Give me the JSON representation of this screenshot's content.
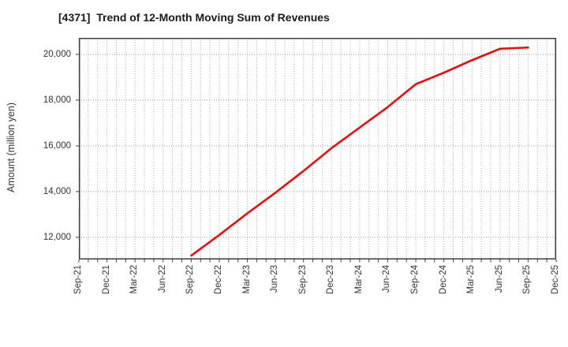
{
  "chart_data": {
    "type": "line",
    "title": "[4371]  Trend of 12-Month Moving Sum of Revenues",
    "ylabel": "Amount (million yen)",
    "xlabel": "",
    "categories": [
      "Sep-21",
      "Dec-21",
      "Mar-22",
      "Jun-22",
      "Sep-22",
      "Dec-22",
      "Mar-23",
      "Jun-23",
      "Sep-23",
      "Dec-23",
      "Mar-24",
      "Jun-24",
      "Sep-24",
      "Dec-24",
      "Mar-25",
      "Jun-25",
      "Sep-25",
      "Dec-25"
    ],
    "months_per_category": 3,
    "ylim": [
      11030,
      20725
    ],
    "yticks": [
      {
        "value": 12000,
        "label": "12,000"
      },
      {
        "value": 14000,
        "label": "14,000"
      },
      {
        "value": 16000,
        "label": "16,000"
      },
      {
        "value": 18000,
        "label": "18,000"
      },
      {
        "value": 20000,
        "label": "20,000"
      }
    ],
    "grid": true,
    "legend": "none",
    "series": [
      {
        "name": "12-Month Moving Sum of Revenues",
        "color": "#ff0000",
        "points": [
          {
            "x": "Sep-22",
            "y": 11200
          },
          {
            "x": "Dec-22",
            "y": 12100
          },
          {
            "x": "Mar-23",
            "y": 13050
          },
          {
            "x": "Jun-23",
            "y": 13950
          },
          {
            "x": "Sep-23",
            "y": 14900
          },
          {
            "x": "Dec-23",
            "y": 15900
          },
          {
            "x": "Mar-24",
            "y": 16800
          },
          {
            "x": "Jun-24",
            "y": 17700
          },
          {
            "x": "Sep-24",
            "y": 18700
          },
          {
            "x": "Dec-24",
            "y": 19200
          },
          {
            "x": "Mar-25",
            "y": 19750
          },
          {
            "x": "Jun-25",
            "y": 20250
          },
          {
            "x": "Sep-25",
            "y": 20300
          }
        ]
      }
    ],
    "colors": {
      "line": "#ff0000",
      "grid_minor": "#b0b0b0",
      "grid_major": "#999999",
      "axis_border": "#3c3c3c",
      "tick_text": "#333333",
      "title_text": "#1a1a1a",
      "background": "#ffffff"
    }
  }
}
